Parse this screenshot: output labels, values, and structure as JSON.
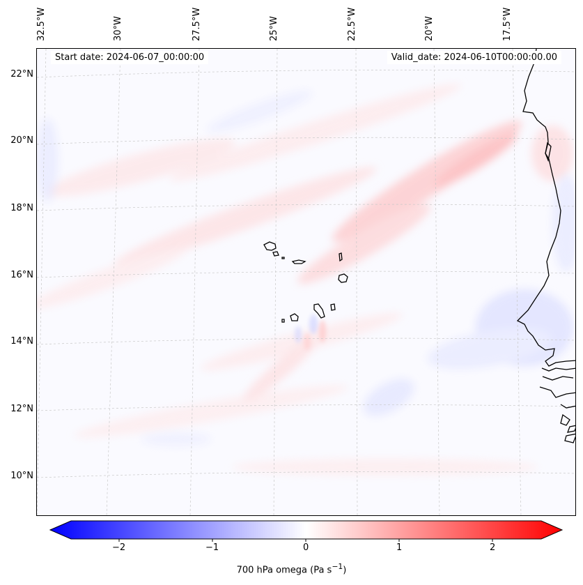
{
  "map": {
    "start_date_label": "Start date: 2024-06-07_00:00:00",
    "valid_date_label": "Valid_date: 2024-06-10T00:00:00.00",
    "longitude_labels": [
      "32.5°W",
      "30°W",
      "27.5°W",
      "25°W",
      "22.5°W",
      "20°W",
      "17.5°W"
    ],
    "latitude_labels": [
      "22°N",
      "20°N",
      "18°N",
      "16°N",
      "14°N",
      "12°N",
      "10°N"
    ],
    "variable": "700 hPa omega",
    "colormap": "bwr",
    "background_color": "#fafaff"
  },
  "colorbar": {
    "ticks": [
      "−2",
      "−1",
      "0",
      "1",
      "2"
    ],
    "range": [
      -2.5,
      2.5
    ],
    "colors": {
      "min": "#0000ff",
      "mid": "#ffffff",
      "max": "#ff0000"
    }
  }
}
